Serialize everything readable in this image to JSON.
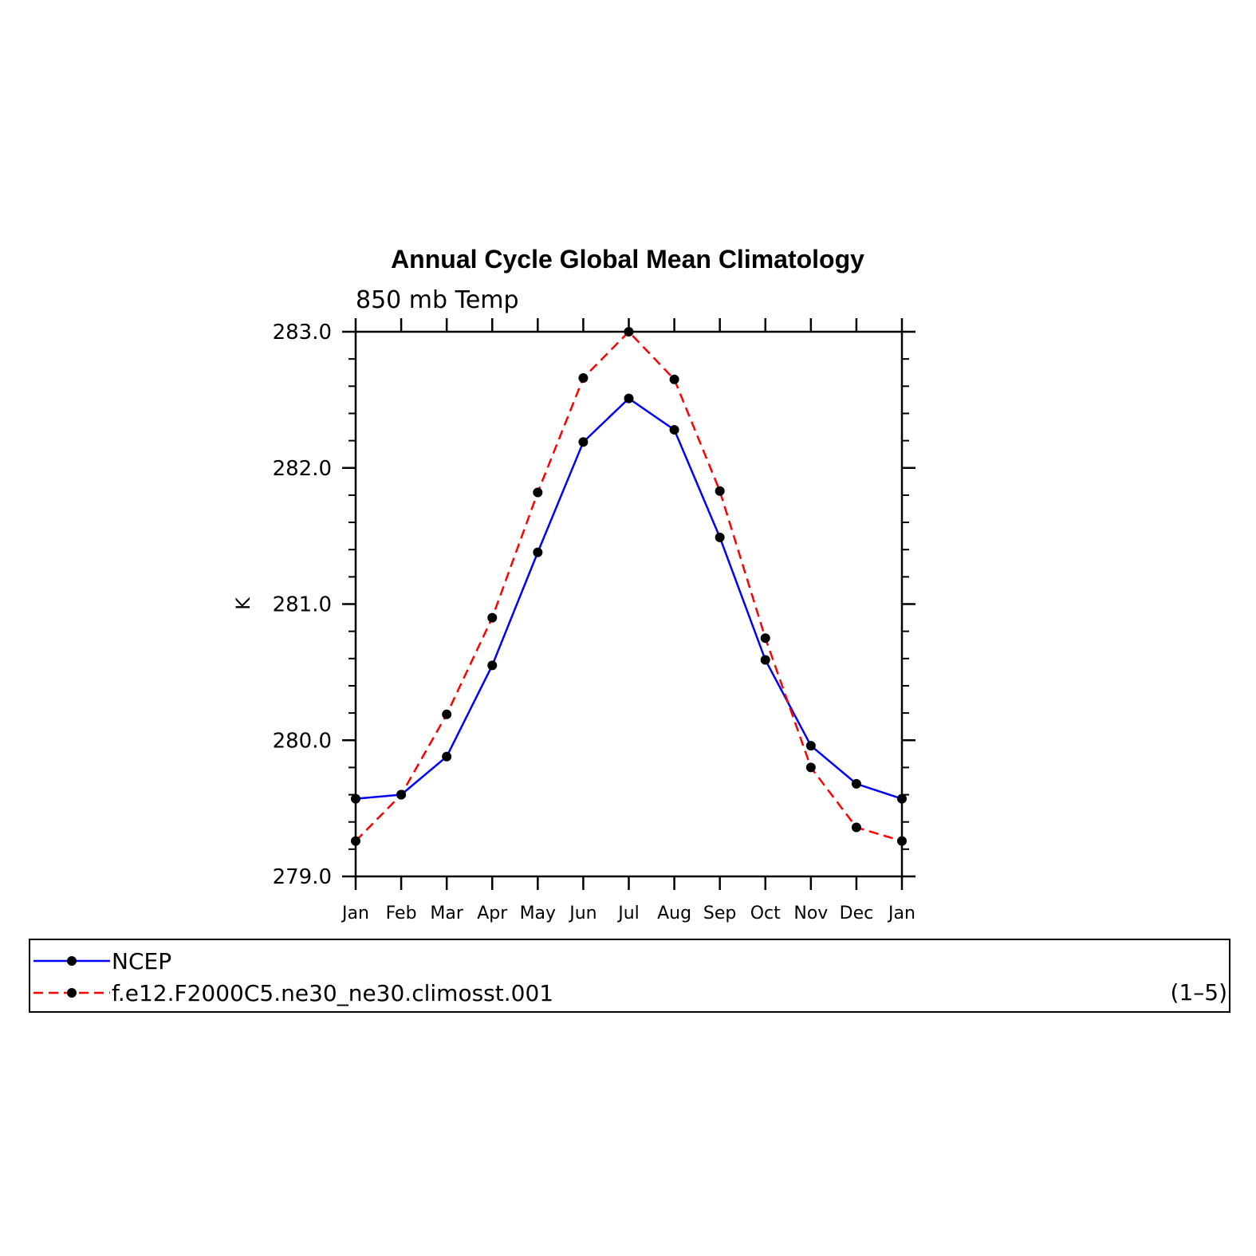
{
  "chart_data": {
    "type": "line",
    "title": "Annual Cycle Global Mean Climatology",
    "subtitle": "850 mb Temp",
    "ylabel": "K",
    "xlabel": "",
    "categories": [
      "Jan",
      "Feb",
      "Mar",
      "Apr",
      "May",
      "Jun",
      "Jul",
      "Aug",
      "Sep",
      "Oct",
      "Nov",
      "Dec",
      "Jan"
    ],
    "ylim": [
      279.0,
      283.0
    ],
    "yticks": [
      "279.0",
      "280.0",
      "281.0",
      "282.0",
      "283.0"
    ],
    "grid": false,
    "legend_position": "bottom",
    "series": [
      {
        "name": "NCEP",
        "color": "#0000ff",
        "dash": "solid",
        "values": [
          279.57,
          279.6,
          279.88,
          280.55,
          281.38,
          282.19,
          282.51,
          282.28,
          281.49,
          280.59,
          279.96,
          279.68,
          279.57
        ]
      },
      {
        "name": "f.e12.F2000C5.ne30_ne30.climosst.001",
        "color": "#ff0000",
        "dash": "dashed",
        "values": [
          279.26,
          279.6,
          280.19,
          280.9,
          281.82,
          282.66,
          283.0,
          282.65,
          281.83,
          280.75,
          279.8,
          279.36,
          279.26
        ]
      }
    ],
    "legend_note": "(1–5)"
  }
}
